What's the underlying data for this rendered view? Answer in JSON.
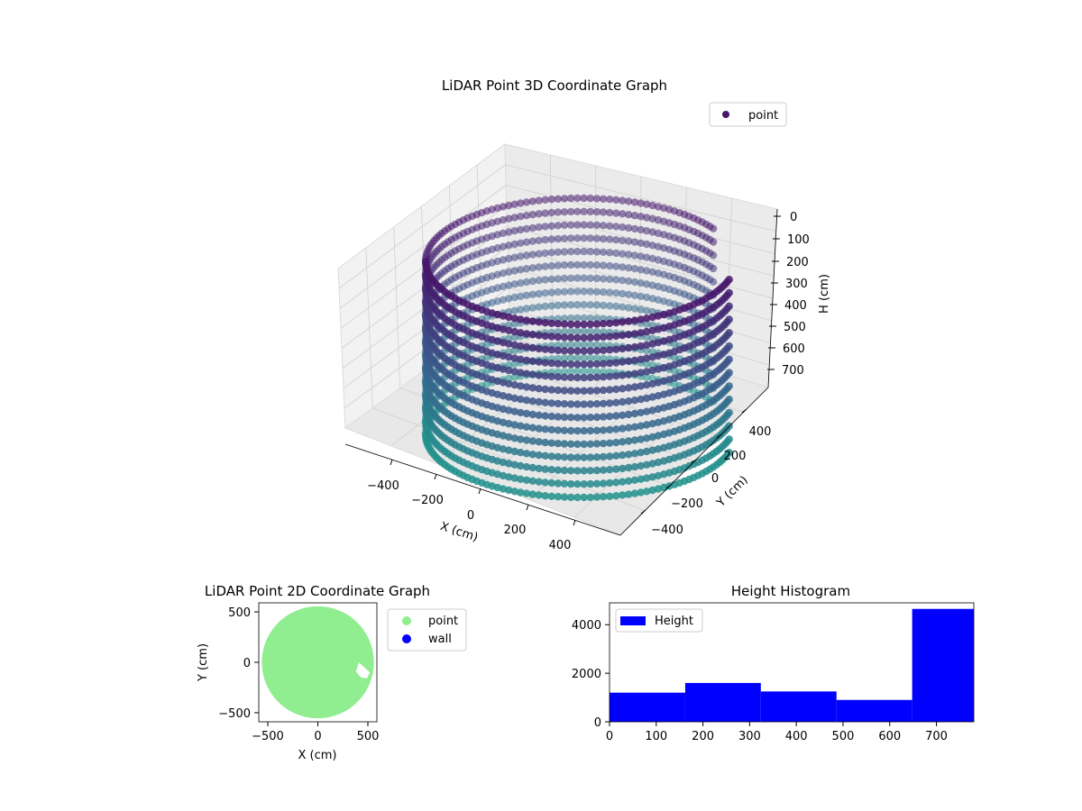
{
  "chart_data": [
    {
      "type": "scatter3d",
      "title": "LiDAR Point 3D Coordinate Graph",
      "xlabel": "X (cm)",
      "ylabel": "Y (cm)",
      "zlabel": "H (cm)",
      "x_ticks": [
        "−400",
        "−200",
        "0",
        "200",
        "400"
      ],
      "y_ticks": [
        "−400",
        "−200",
        "0",
        "200",
        "400"
      ],
      "z_ticks": [
        "0",
        "100",
        "200",
        "300",
        "400",
        "500",
        "600",
        "700"
      ],
      "xlim": [
        -550,
        550
      ],
      "ylim": [
        -550,
        550
      ],
      "zlim": [
        0,
        780
      ],
      "z_inverted": true,
      "legend": [
        "point"
      ],
      "legend_loc": "upper-right",
      "colormap": "viridis (by height)",
      "structure": {
        "radius": 500,
        "height_max": 780,
        "gap_angle_deg": [
          -30,
          15
        ],
        "n_columns": 150
      },
      "colors": {
        "top": "#46166b",
        "mid": "#3b5a8c",
        "bottom": "#21918c",
        "legend_marker": "#46166b"
      }
    },
    {
      "type": "scatter",
      "title": "LiDAR Point 2D Coordinate Graph",
      "xlabel": "X (cm)",
      "ylabel": "Y (cm)",
      "x_ticks": [
        -500,
        0,
        500
      ],
      "y_ticks": [
        -500,
        0,
        500
      ],
      "xlim": [
        -590,
        590
      ],
      "ylim": [
        -590,
        590
      ],
      "series": [
        {
          "name": "point",
          "color": "#90ee90",
          "shape": "disk",
          "radius": 560,
          "notch": [
            [
              410,
              0
            ],
            [
              380,
              -90
            ],
            [
              430,
              -150
            ],
            [
              490,
              -160
            ],
            [
              520,
              -100
            ]
          ]
        },
        {
          "name": "wall",
          "color": "#0000ff",
          "points": []
        }
      ],
      "legend_loc": "outside-right"
    },
    {
      "type": "bar",
      "title": "Height Histogram",
      "series": [
        {
          "name": "Height",
          "color": "#0000ff",
          "bins": [
            [
              0,
              162
            ],
            [
              162,
              324
            ],
            [
              324,
              486
            ],
            [
              486,
              648
            ],
            [
              648,
              780
            ]
          ],
          "values": [
            1200,
            1600,
            1250,
            900,
            4650
          ]
        }
      ],
      "x_ticks": [
        0,
        100,
        200,
        300,
        400,
        500,
        600,
        700
      ],
      "y_ticks": [
        0,
        2000,
        4000
      ],
      "xlim": [
        0,
        780
      ],
      "ylim": [
        0,
        4900
      ],
      "legend_loc": "upper-left"
    }
  ]
}
